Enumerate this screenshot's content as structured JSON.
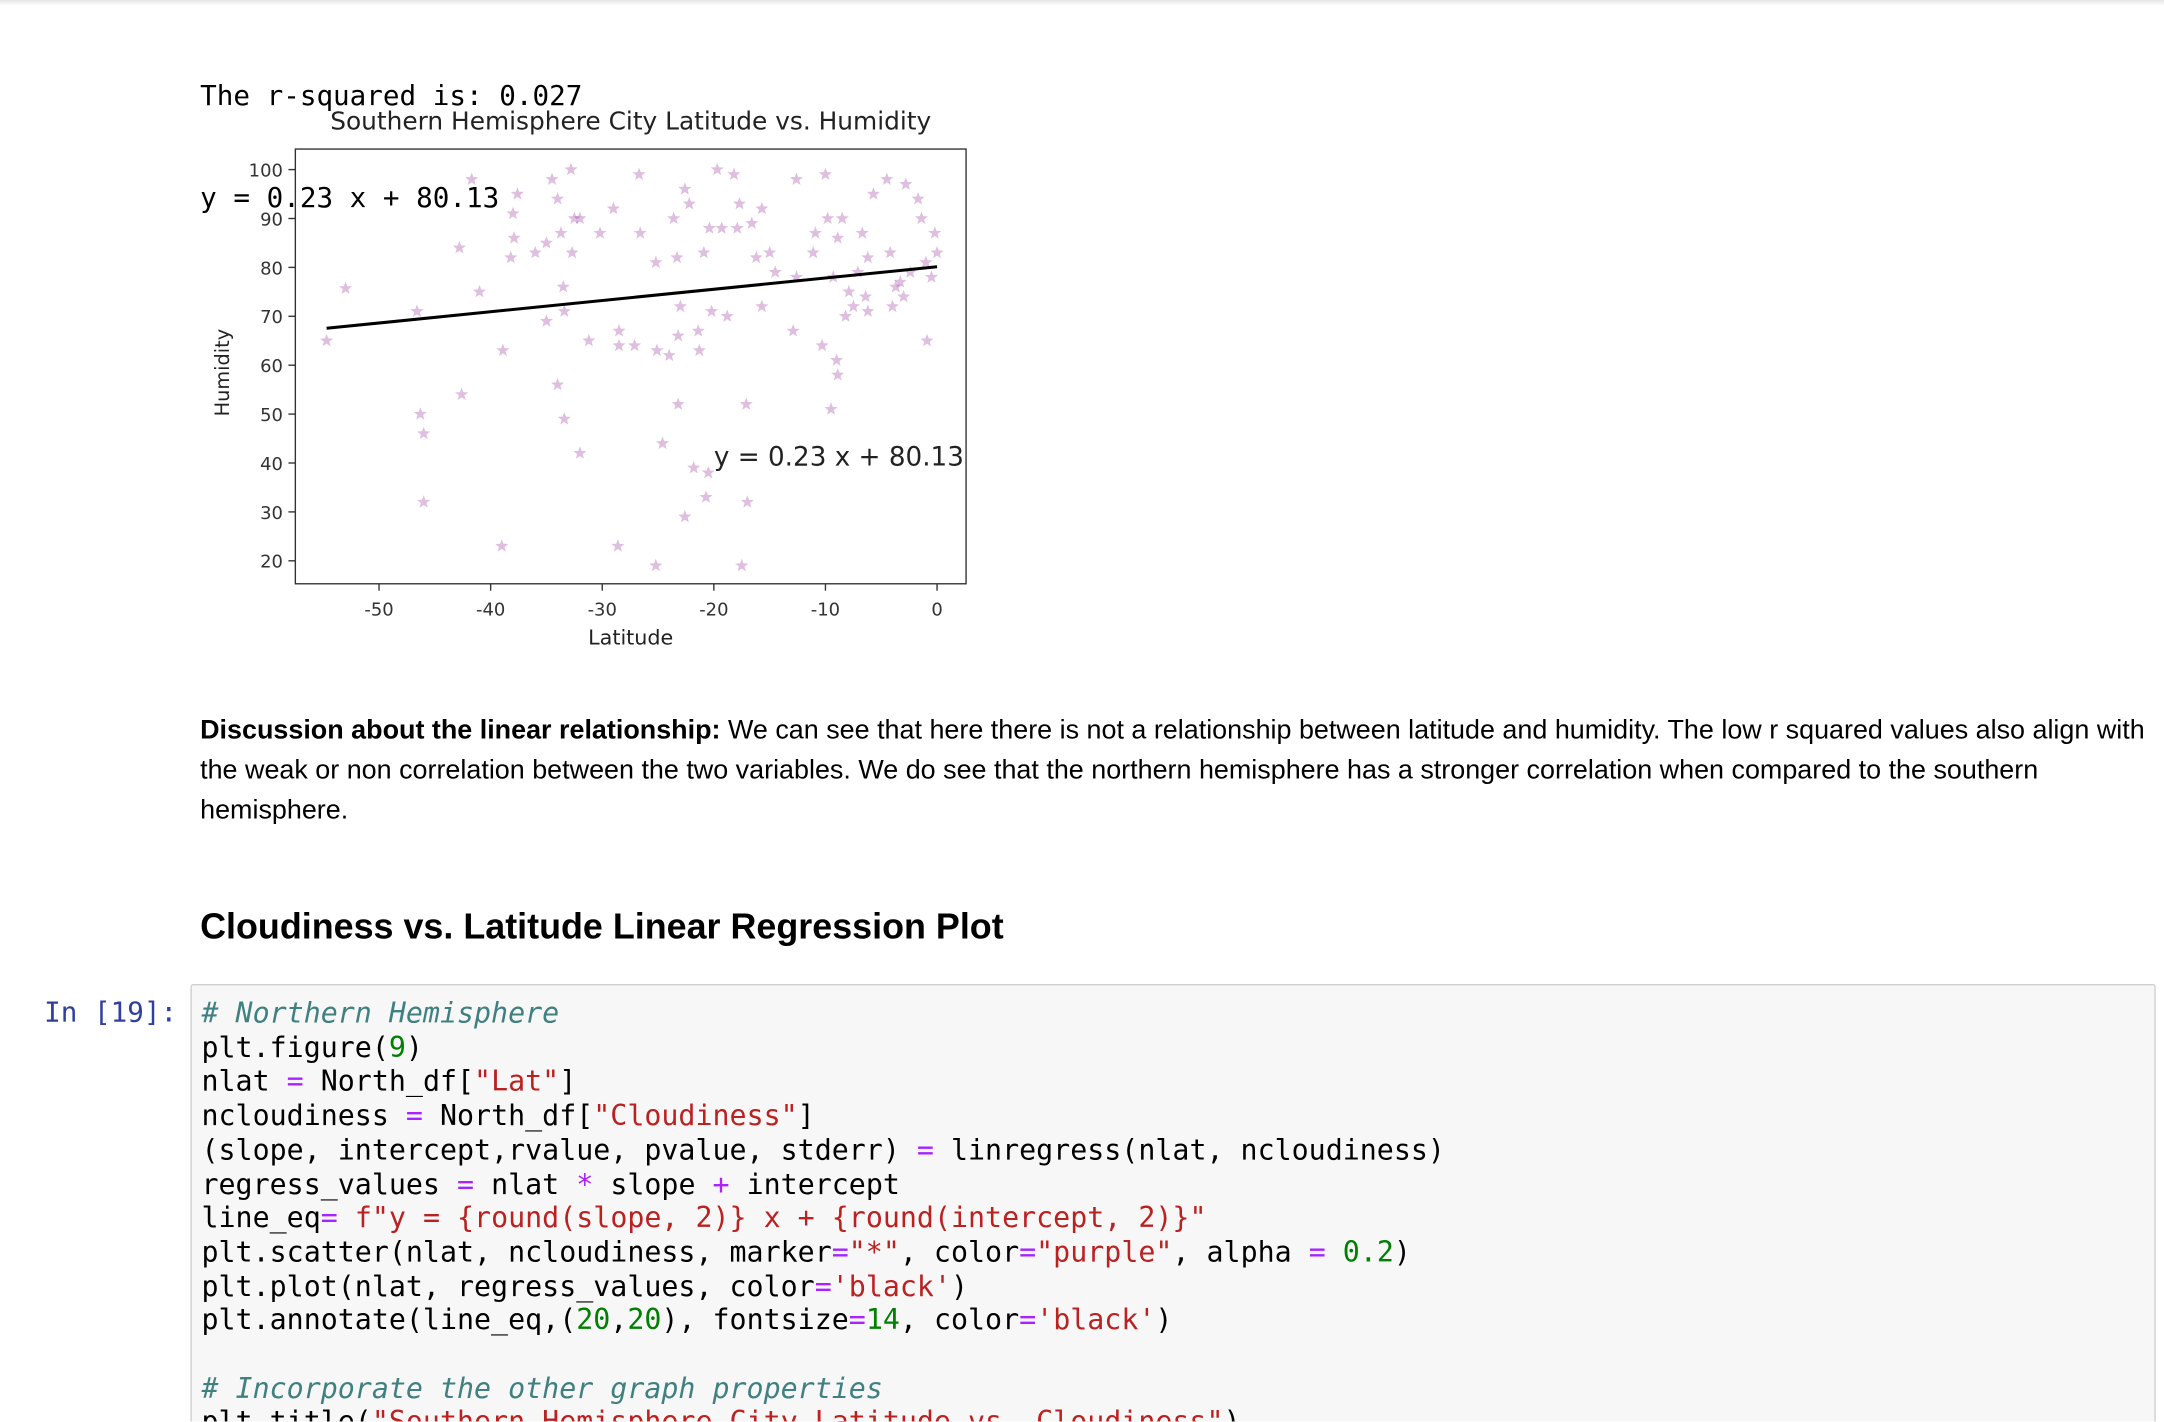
{
  "output": {
    "lines": [
      "The r-squared is: 0.027",
      "y = 0.23 x + 80.13"
    ]
  },
  "chart_data": {
    "type": "scatter",
    "title": "Southern Hemisphere City Latitude vs. Humidity",
    "x_label": "Latitude",
    "y_label": "Humidity",
    "x": [
      -54.7,
      -53,
      -46.6,
      -46.3,
      -46,
      -46,
      -42.6,
      -42.8,
      -41.7,
      -41,
      -38.9,
      -39,
      -38,
      -37.9,
      -38.2,
      -37.6,
      -36,
      -35,
      -34.5,
      -34,
      -33.7,
      -33.5,
      -33.4,
      -35,
      -34,
      -33.4,
      -32.8,
      -32.7,
      -32,
      -32.5,
      -32,
      -31.2,
      -30.2,
      -29,
      -28.5,
      -28.5,
      -28.6,
      -27.1,
      -26.7,
      -26.6,
      -25.1,
      -25.2,
      -25.2,
      -24.6,
      -24,
      -23.6,
      -23.3,
      -23.2,
      -23.2,
      -23,
      -22.6,
      -22.2,
      -21.8,
      -22.6,
      -21.4,
      -21.3,
      -20.9,
      -20.7,
      -20.5,
      -20.4,
      -20.2,
      -19.7,
      -19.3,
      -18.8,
      -18.2,
      -17.9,
      -17.7,
      -17.5,
      -17.1,
      -17,
      -16.6,
      -16.2,
      -15.7,
      -15.7,
      -15,
      -14.5,
      -12.9,
      -12.6,
      -12.6,
      -11.1,
      -10.9,
      -10.3,
      -10,
      -9.8,
      -9.5,
      -9.3,
      -9,
      -8.9,
      -8.9,
      -8.5,
      -8.2,
      -7.9,
      -7.5,
      -7.1,
      -6.7,
      -6.4,
      -6.2,
      -6.2,
      -5.7,
      -4.5,
      -4.2,
      -4,
      -3.7,
      -3.3,
      -3,
      -2.8,
      -2.4,
      -1.7,
      -1.4,
      -1,
      -0.9,
      -0.5,
      -0.2,
      0
    ],
    "values": [
      65,
      75.7,
      71,
      50,
      46,
      32,
      54,
      84,
      98,
      75,
      63,
      23,
      91,
      86,
      82,
      95,
      83,
      85,
      98,
      94,
      87,
      76,
      71,
      69,
      56,
      49,
      100,
      83,
      42,
      90,
      90,
      65,
      87,
      92,
      67,
      64,
      23,
      64,
      99,
      87,
      63,
      81,
      19,
      44,
      62,
      90,
      82,
      66,
      52,
      72,
      96,
      93,
      39,
      29,
      67,
      63,
      83,
      33,
      38,
      88,
      71,
      100,
      88,
      70,
      99,
      88,
      93,
      19,
      52,
      32,
      89,
      82,
      72,
      92,
      83,
      79,
      67,
      98,
      78,
      83,
      87,
      64,
      99,
      90,
      51,
      78,
      61,
      58,
      86,
      90,
      70,
      75,
      72,
      79,
      87,
      74,
      82,
      71,
      95,
      98,
      83,
      72,
      76,
      77,
      74,
      97,
      79,
      94,
      90,
      81,
      65,
      78,
      87,
      83
    ],
    "color": "purple",
    "opacity": 0.25,
    "marker": "star",
    "fit": {
      "x": [
        -54.7,
        0
      ],
      "values": [
        67.55,
        80.13
      ],
      "color": "black"
    },
    "annotation": {
      "text": "y = 0.23 x + 80.13",
      "x": -20,
      "y": 39.5
    },
    "xlim": [
      -57.5,
      2.6
    ],
    "ylim": [
      15.3,
      104.2
    ],
    "xticks": [
      -50,
      -40,
      -30,
      -20,
      -10,
      0
    ],
    "yticks": [
      20,
      30,
      40,
      50,
      60,
      70,
      80,
      90,
      100
    ]
  },
  "discussion": {
    "label": "Discussion about the linear relationship:",
    "text": "We can see that here there is not a relationship between latitude and humidity. The low r squared values also align with the weak or non correlation between the two variables. We do see that the northern hemisphere has a stronger correlation when compared to the southern hemisphere."
  },
  "heading": "Cloudiness vs. Latitude Linear Regression Plot",
  "code_cell": {
    "prompt": "In [19]:",
    "blocks": [
      [
        "# Northern Hemisphere",
        "plt.figure(9)",
        "nlat = North_df[\"Lat\"]",
        "ncloudiness = North_df[\"Cloudiness\"]",
        "(slope, intercept,rvalue, pvalue, stderr) = linregress(nlat, ncloudiness)",
        "regress_values = nlat * slope + intercept",
        "line_eq= f\"y = {round(slope, 2)} x + {round(intercept, 2)}\"",
        "plt.scatter(nlat, ncloudiness, marker=\"*\", color=\"purple\", alpha = 0.2)",
        "plt.plot(nlat, regress_values, color='black')",
        "plt.annotate(line_eq,(20,20), fontsize=14, color='black')"
      ],
      [
        "# Incorporate the other graph properties",
        "plt.title(\"Southern Hemisphere City Latitude vs. Cloudiness\")"
      ]
    ]
  }
}
